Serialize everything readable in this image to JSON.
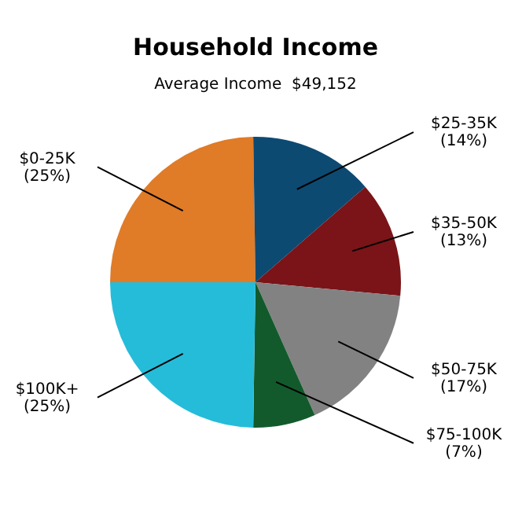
{
  "chart_data": {
    "type": "pie",
    "title": "Household Income",
    "subtitle": "Average Income  $49,152",
    "categories": [
      "$0-25K",
      "$25-35K",
      "$35-50K",
      "$50-75K",
      "$75-100K",
      "$100K+"
    ],
    "values": [
      25,
      14,
      13,
      17,
      7,
      25
    ],
    "value_labels": [
      "(25%)",
      "(14%)",
      "(13%)",
      "(17%)",
      "(7%)",
      "(25%)"
    ],
    "colors": [
      "#e07b27",
      "#0d4a72",
      "#7a1418",
      "#828282",
      "#125a2c",
      "#25bcd9"
    ],
    "legend": false
  }
}
